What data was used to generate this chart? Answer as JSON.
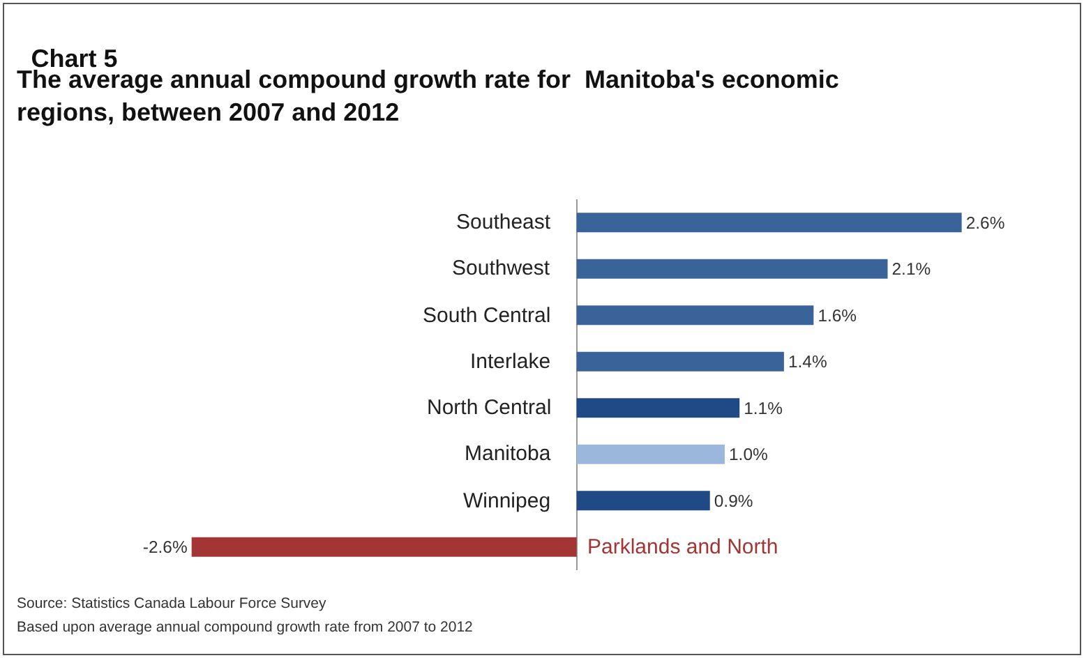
{
  "chart_data": {
    "type": "bar",
    "orientation": "horizontal",
    "title": "Chart 5",
    "subtitle": "The average annual compound growth rate for  Manitoba's economic regions, between 2007 and 2012",
    "categories": [
      "Southeast",
      "Southwest",
      "South Central",
      "Interlake",
      "North Central",
      "Manitoba",
      "Winnipeg",
      "Parklands and North"
    ],
    "values": [
      2.6,
      2.1,
      1.6,
      1.4,
      1.1,
      1.0,
      0.9,
      -2.6
    ],
    "colors": [
      "#3a6399",
      "#3a6399",
      "#3a6399",
      "#3a6399",
      "#1f4a86",
      "#9bb8dc",
      "#1f4a86",
      "#a33535"
    ],
    "value_labels": [
      "2.6%",
      "2.1%",
      "1.6%",
      "1.4%",
      "1.1%",
      "1.0%",
      "0.9%",
      "-2.6%"
    ],
    "annotations": [
      "Source: Statistics Canada Labour Force Survey",
      "Based upon average annual compound growth rate from 2007 to 2012"
    ]
  }
}
